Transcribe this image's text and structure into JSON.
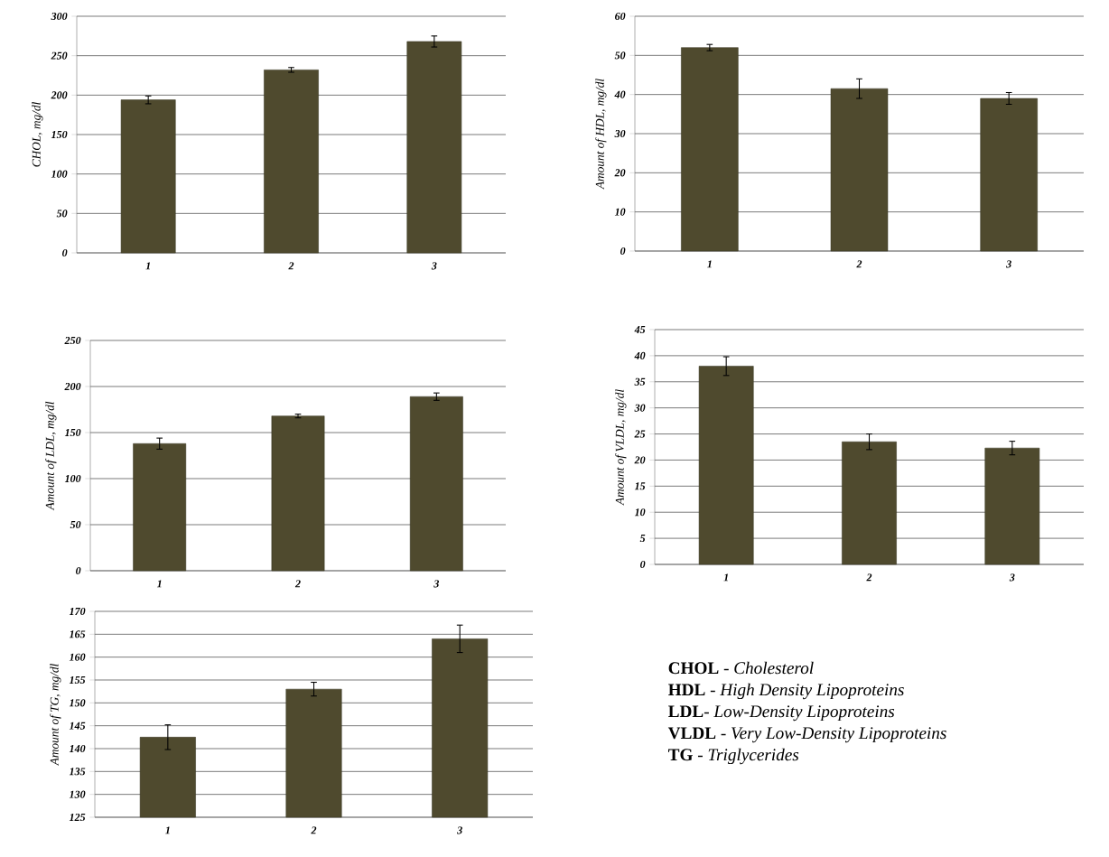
{
  "chart_data": [
    {
      "type": "bar",
      "ylabel": "CHOL, mg/dl",
      "categories": [
        "1",
        "2",
        "3"
      ],
      "values": [
        194,
        232,
        268
      ],
      "errors": [
        5,
        3,
        7
      ],
      "color": "#4f4a2e",
      "ylim": [
        0,
        300
      ],
      "yticks": [
        0,
        50,
        100,
        150,
        200,
        250,
        300
      ],
      "grid": "y"
    },
    {
      "type": "bar",
      "ylabel": "Amount of HDL, mg/dl",
      "categories": [
        "1",
        "2",
        "3"
      ],
      "values": [
        52,
        41.5,
        39
      ],
      "errors": [
        0.8,
        2.5,
        1.5
      ],
      "color": "#4f4a2e",
      "ylim": [
        0,
        60
      ],
      "yticks": [
        0,
        10,
        20,
        30,
        40,
        50,
        60
      ],
      "grid": "y"
    },
    {
      "type": "bar",
      "ylabel": "Amount of LDL, mg/dl",
      "categories": [
        "1",
        "2",
        "3"
      ],
      "values": [
        138,
        168,
        189
      ],
      "errors": [
        6,
        2,
        4
      ],
      "color": "#4f4a2e",
      "ylim": [
        0,
        250
      ],
      "yticks": [
        0,
        50,
        100,
        150,
        200,
        250
      ],
      "grid": "y"
    },
    {
      "type": "bar",
      "ylabel": "Amount of VLDL, mg/dl",
      "categories": [
        "1",
        "2",
        "3"
      ],
      "values": [
        38,
        23.5,
        22.3
      ],
      "errors": [
        1.8,
        1.5,
        1.3
      ],
      "color": "#4f4a2e",
      "ylim": [
        0,
        45
      ],
      "yticks": [
        0,
        5,
        10,
        15,
        20,
        25,
        30,
        35,
        40,
        45
      ],
      "grid": "y"
    },
    {
      "type": "bar",
      "ylabel": "Amount of TG, mg/dl",
      "categories": [
        "1",
        "2",
        "3"
      ],
      "values": [
        142.5,
        153,
        164
      ],
      "errors": [
        2.7,
        1.5,
        3
      ],
      "color": "#4f4a2e",
      "ylim": [
        125,
        170
      ],
      "yticks": [
        125,
        130,
        135,
        140,
        145,
        150,
        155,
        160,
        165,
        170
      ],
      "grid": "y"
    },
    {
      "type": "other",
      "annotations": [
        "**CHOL** - *Cholesterol*",
        "**HDL** - *High Density Lipoproteins*",
        "**LDL**- *Low-Density Lipoproteins*",
        "**VLDL** - *Very Low-Density Lipoproteins*",
        "**TG** - *Triglycerides*"
      ]
    }
  ]
}
